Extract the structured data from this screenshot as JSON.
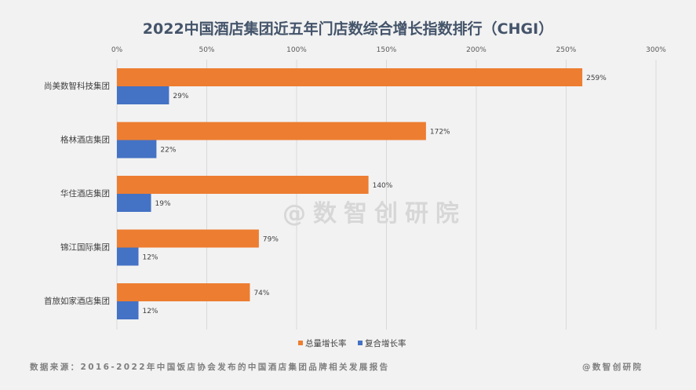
{
  "chart_data": {
    "type": "bar",
    "orientation": "horizontal",
    "title": "2022中国酒店集团近五年门店数综合增长指数排行（CHGI）",
    "categories": [
      "尚美数智科技集团",
      "格林酒店集团",
      "华住酒店集团",
      "锦江国际集团",
      "首旅如家酒店集团"
    ],
    "series": [
      {
        "name": "总量增长率",
        "color": "#ed7d31",
        "values": [
          259,
          172,
          140,
          79,
          74
        ]
      },
      {
        "name": "复合增长率",
        "color": "#4472c4",
        "values": [
          29,
          22,
          19,
          12,
          12
        ]
      }
    ],
    "xlim": [
      0,
      300
    ],
    "ticks": [
      0,
      50,
      100,
      150,
      200,
      250,
      300
    ],
    "tick_labels": [
      "0%",
      "50%",
      "100%",
      "150%",
      "200%",
      "250%",
      "300%"
    ],
    "data_labels": [
      [
        "259%",
        "172%",
        "140%",
        "79%",
        "74%"
      ],
      [
        "29%",
        "22%",
        "19%",
        "12%",
        "12%"
      ]
    ],
    "x_axis_position": "top",
    "grid": true,
    "legend_position": "bottom"
  },
  "watermark": "@数智创研院",
  "footer": {
    "source": "数据来源：2016-2022年中国饭店协会发布的中国酒店集团品牌相关发展报告",
    "brand": "@数智创研院"
  }
}
